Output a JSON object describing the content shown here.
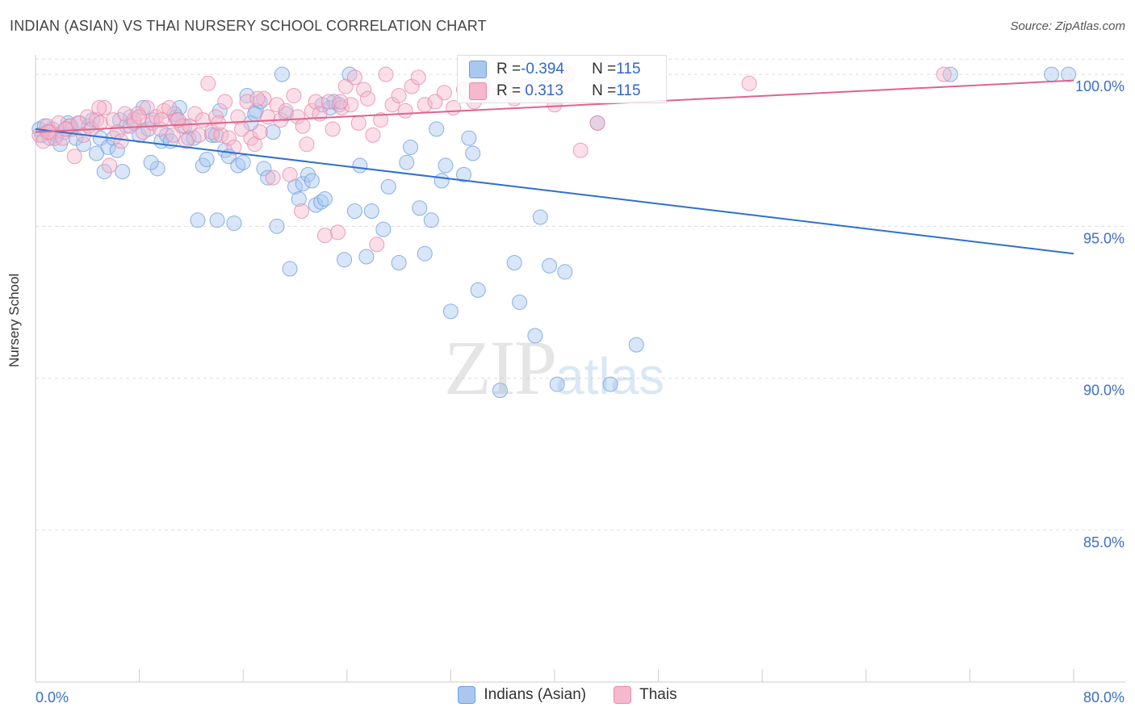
{
  "header": {
    "title": "INDIAN (ASIAN) VS THAI NURSERY SCHOOL CORRELATION CHART",
    "source": "Source: ZipAtlas.com"
  },
  "watermark": {
    "zip": "ZIP",
    "atlas": "atlas"
  },
  "stats": {
    "row1": {
      "r_label": "R = ",
      "r_value": "-0.394",
      "n_label": "N = ",
      "n_value": "115"
    },
    "row2": {
      "r_label": "R = ",
      "r_value": " 0.313",
      "n_label": "N = ",
      "n_value": "115"
    }
  },
  "legend": {
    "series1": "Indians (Asian)",
    "series2": "Thais"
  },
  "colors": {
    "blue_fill": "#a9c8f0",
    "blue_stroke": "#6f9ee0",
    "blue_line": "#2f6fd0",
    "pink_fill": "#f5b8cc",
    "pink_stroke": "#e98aa8",
    "pink_line": "#e0628d",
    "grid": "#dddddd",
    "tick_label": "#3b6fc6"
  },
  "chart_data": {
    "type": "scatter",
    "title": "INDIAN (ASIAN) VS THAI NURSERY SCHOOL CORRELATION CHART",
    "xlabel": "",
    "ylabel": "Nursery School",
    "xlim": [
      0,
      80
    ],
    "ylim": [
      80,
      100.8
    ],
    "x_tick_labels": [
      "0.0%",
      "80.0%"
    ],
    "y_ticks": [
      85,
      90,
      95,
      100
    ],
    "y_tick_labels": [
      "85.0%",
      "90.0%",
      "95.0%",
      "100.0%"
    ],
    "grid": true,
    "legend_position": "bottom",
    "series": [
      {
        "name": "Indians (Asian)",
        "trend": {
          "x": [
            0,
            80
          ],
          "y": [
            98.2,
            94.1
          ]
        },
        "points": [
          [
            0.3,
            98.2
          ],
          [
            0.5,
            98.0
          ],
          [
            0.7,
            98.3
          ],
          [
            0.9,
            98.1
          ],
          [
            1.1,
            97.9
          ],
          [
            1.3,
            98.2
          ],
          [
            1.6,
            98.0
          ],
          [
            1.9,
            97.7
          ],
          [
            2.2,
            98.1
          ],
          [
            2.5,
            98.4
          ],
          [
            2.8,
            98.2
          ],
          [
            3.1,
            97.9
          ],
          [
            3.4,
            98.4
          ],
          [
            3.7,
            97.7
          ],
          [
            4.1,
            98.3
          ],
          [
            4.4,
            98.5
          ],
          [
            4.7,
            97.4
          ],
          [
            5.0,
            97.9
          ],
          [
            5.3,
            96.8
          ],
          [
            5.6,
            97.6
          ],
          [
            6.0,
            97.9
          ],
          [
            6.3,
            97.5
          ],
          [
            6.7,
            96.8
          ],
          [
            7.0,
            98.3
          ],
          [
            7.3,
            98.6
          ],
          [
            7.6,
            98.4
          ],
          [
            8.0,
            98.0
          ],
          [
            8.3,
            98.9
          ],
          [
            8.7,
            98.2
          ],
          [
            9.0,
            98.5
          ],
          [
            9.4,
            96.9
          ],
          [
            9.7,
            97.8
          ],
          [
            10.1,
            98.0
          ],
          [
            10.4,
            97.8
          ],
          [
            10.8,
            98.6
          ],
          [
            11.1,
            98.9
          ],
          [
            11.5,
            98.3
          ],
          [
            11.8,
            97.9
          ],
          [
            12.2,
            97.9
          ],
          [
            12.5,
            95.2
          ],
          [
            12.9,
            97.0
          ],
          [
            13.2,
            97.2
          ],
          [
            13.6,
            98.0
          ],
          [
            13.9,
            98.0
          ],
          [
            14.2,
            98.8
          ],
          [
            14.6,
            97.5
          ],
          [
            14.9,
            97.3
          ],
          [
            15.3,
            95.1
          ],
          [
            15.6,
            97.0
          ],
          [
            16.0,
            97.1
          ],
          [
            16.3,
            99.3
          ],
          [
            16.6,
            98.4
          ],
          [
            17.0,
            98.8
          ],
          [
            17.3,
            99.1
          ],
          [
            17.6,
            96.9
          ],
          [
            17.9,
            96.6
          ],
          [
            18.3,
            98.1
          ],
          [
            18.6,
            95.0
          ],
          [
            19.0,
            100.0
          ],
          [
            19.3,
            98.7
          ],
          [
            19.6,
            93.6
          ],
          [
            20.0,
            96.3
          ],
          [
            20.3,
            95.9
          ],
          [
            20.6,
            96.4
          ],
          [
            21.0,
            96.7
          ],
          [
            21.3,
            96.5
          ],
          [
            21.6,
            95.7
          ],
          [
            22.0,
            95.8
          ],
          [
            22.3,
            95.9
          ],
          [
            22.7,
            98.9
          ],
          [
            23.0,
            99.1
          ],
          [
            23.4,
            99.0
          ],
          [
            23.8,
            93.9
          ],
          [
            24.2,
            100.0
          ],
          [
            24.6,
            95.5
          ],
          [
            25.0,
            97.0
          ],
          [
            25.5,
            94.0
          ],
          [
            25.9,
            95.5
          ],
          [
            26.8,
            94.9
          ],
          [
            27.2,
            96.3
          ],
          [
            28.0,
            93.8
          ],
          [
            28.6,
            97.1
          ],
          [
            28.9,
            97.6
          ],
          [
            29.6,
            95.6
          ],
          [
            30.0,
            94.1
          ],
          [
            30.5,
            95.2
          ],
          [
            30.9,
            98.2
          ],
          [
            31.3,
            96.5
          ],
          [
            31.6,
            97.0
          ],
          [
            32.0,
            92.2
          ],
          [
            33.0,
            96.7
          ],
          [
            33.4,
            97.9
          ],
          [
            33.7,
            97.4
          ],
          [
            34.1,
            92.9
          ],
          [
            35.8,
            89.6
          ],
          [
            36.9,
            93.8
          ],
          [
            37.3,
            92.5
          ],
          [
            38.5,
            91.4
          ],
          [
            38.9,
            95.3
          ],
          [
            39.6,
            93.7
          ],
          [
            40.2,
            89.8
          ],
          [
            40.8,
            93.5
          ],
          [
            43.3,
            98.4
          ],
          [
            44.3,
            89.8
          ],
          [
            46.3,
            91.1
          ],
          [
            70.5,
            100.0
          ],
          [
            78.3,
            100.0
          ],
          [
            79.6,
            100.0
          ],
          [
            8.9,
            97.1
          ],
          [
            14.0,
            95.2
          ],
          [
            10.7,
            98.7
          ],
          [
            6.5,
            98.5
          ],
          [
            2.6,
            98.3
          ],
          [
            16.9,
            98.7
          ],
          [
            22.1,
            99.0
          ]
        ]
      },
      {
        "name": "Thais",
        "trend": {
          "x": [
            0,
            80
          ],
          "y": [
            98.1,
            99.8
          ]
        },
        "points": [
          [
            0.3,
            98.0
          ],
          [
            0.6,
            97.8
          ],
          [
            0.9,
            98.3
          ],
          [
            1.2,
            98.1
          ],
          [
            1.5,
            97.9
          ],
          [
            1.8,
            98.4
          ],
          [
            2.1,
            97.9
          ],
          [
            2.4,
            98.2
          ],
          [
            2.7,
            98.3
          ],
          [
            3.0,
            97.3
          ],
          [
            3.3,
            98.4
          ],
          [
            3.7,
            98.0
          ],
          [
            4.0,
            98.6
          ],
          [
            4.3,
            98.2
          ],
          [
            4.7,
            98.5
          ],
          [
            5.0,
            98.4
          ],
          [
            5.3,
            98.9
          ],
          [
            5.7,
            97.0
          ],
          [
            6.0,
            98.5
          ],
          [
            6.3,
            98.1
          ],
          [
            6.6,
            97.8
          ],
          [
            6.9,
            98.7
          ],
          [
            7.3,
            98.3
          ],
          [
            7.6,
            98.5
          ],
          [
            7.9,
            98.7
          ],
          [
            8.3,
            98.1
          ],
          [
            8.6,
            98.9
          ],
          [
            9.0,
            98.4
          ],
          [
            9.3,
            98.6
          ],
          [
            9.6,
            98.2
          ],
          [
            9.9,
            98.8
          ],
          [
            10.3,
            98.9
          ],
          [
            10.6,
            98.0
          ],
          [
            10.9,
            98.5
          ],
          [
            11.3,
            98.3
          ],
          [
            11.6,
            97.8
          ],
          [
            11.9,
            98.3
          ],
          [
            12.3,
            98.7
          ],
          [
            12.6,
            98.0
          ],
          [
            12.9,
            98.5
          ],
          [
            13.3,
            99.7
          ],
          [
            13.6,
            98.1
          ],
          [
            13.9,
            98.6
          ],
          [
            14.3,
            98.0
          ],
          [
            14.6,
            99.1
          ],
          [
            14.9,
            97.9
          ],
          [
            15.3,
            97.6
          ],
          [
            15.6,
            98.6
          ],
          [
            15.9,
            98.2
          ],
          [
            16.3,
            99.1
          ],
          [
            16.6,
            97.9
          ],
          [
            16.9,
            97.7
          ],
          [
            17.3,
            98.1
          ],
          [
            17.6,
            99.2
          ],
          [
            17.9,
            98.6
          ],
          [
            18.3,
            96.6
          ],
          [
            18.6,
            99.0
          ],
          [
            18.9,
            98.5
          ],
          [
            19.3,
            98.8
          ],
          [
            19.6,
            96.7
          ],
          [
            19.9,
            99.3
          ],
          [
            20.2,
            98.6
          ],
          [
            20.6,
            98.3
          ],
          [
            20.9,
            97.7
          ],
          [
            21.3,
            98.8
          ],
          [
            21.6,
            99.1
          ],
          [
            21.9,
            98.7
          ],
          [
            22.3,
            94.7
          ],
          [
            22.6,
            99.1
          ],
          [
            22.9,
            98.2
          ],
          [
            23.3,
            94.8
          ],
          [
            23.6,
            98.9
          ],
          [
            23.9,
            99.6
          ],
          [
            24.3,
            99.0
          ],
          [
            24.6,
            99.9
          ],
          [
            24.9,
            98.4
          ],
          [
            25.3,
            99.5
          ],
          [
            25.6,
            99.2
          ],
          [
            26.0,
            98.0
          ],
          [
            26.3,
            94.4
          ],
          [
            26.6,
            98.5
          ],
          [
            27.0,
            100.0
          ],
          [
            27.5,
            99.0
          ],
          [
            28.0,
            99.3
          ],
          [
            28.5,
            98.8
          ],
          [
            29.0,
            99.6
          ],
          [
            29.5,
            99.9
          ],
          [
            30.0,
            99.0
          ],
          [
            30.8,
            99.1
          ],
          [
            31.5,
            99.4
          ],
          [
            32.2,
            98.9
          ],
          [
            33.0,
            99.5
          ],
          [
            33.8,
            99.1
          ],
          [
            34.5,
            99.7
          ],
          [
            35.3,
            99.3
          ],
          [
            36.1,
            99.8
          ],
          [
            36.9,
            99.2
          ],
          [
            37.7,
            99.6
          ],
          [
            39.0,
            99.3
          ],
          [
            40.0,
            99.0
          ],
          [
            41.0,
            100.0
          ],
          [
            42.0,
            97.5
          ],
          [
            43.3,
            98.4
          ],
          [
            55.0,
            99.7
          ],
          [
            70.0,
            100.0
          ],
          [
            9.7,
            98.5
          ],
          [
            20.5,
            95.5
          ],
          [
            4.9,
            98.9
          ],
          [
            1.0,
            98.1
          ],
          [
            2.3,
            98.2
          ],
          [
            11.0,
            98.5
          ],
          [
            17.1,
            99.2
          ],
          [
            23.5,
            99.1
          ],
          [
            14.1,
            98.4
          ],
          [
            8.0,
            98.6
          ]
        ]
      }
    ]
  }
}
